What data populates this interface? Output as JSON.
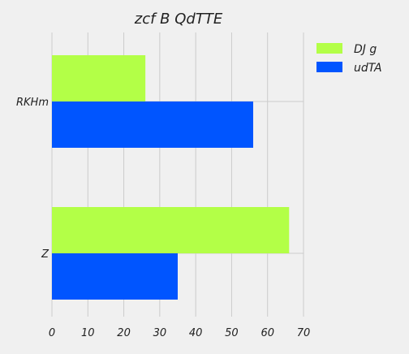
{
  "chart_data": {
    "type": "bar",
    "orientation": "horizontal",
    "title": "zcf B QdTTE",
    "xlabel": "",
    "ylabel": "",
    "categories": [
      "RKHm",
      "Z"
    ],
    "series": [
      {
        "name": "DJ g",
        "values": [
          26,
          66
        ],
        "color": "#b3ff47"
      },
      {
        "name": "udTA",
        "values": [
          56,
          35
        ],
        "color": "#0055ff"
      }
    ],
    "xlim": [
      0,
      70
    ],
    "xticks": [
      0,
      10,
      20,
      30,
      40,
      50,
      60,
      70
    ],
    "grid": true,
    "legend_position": "top-right"
  }
}
